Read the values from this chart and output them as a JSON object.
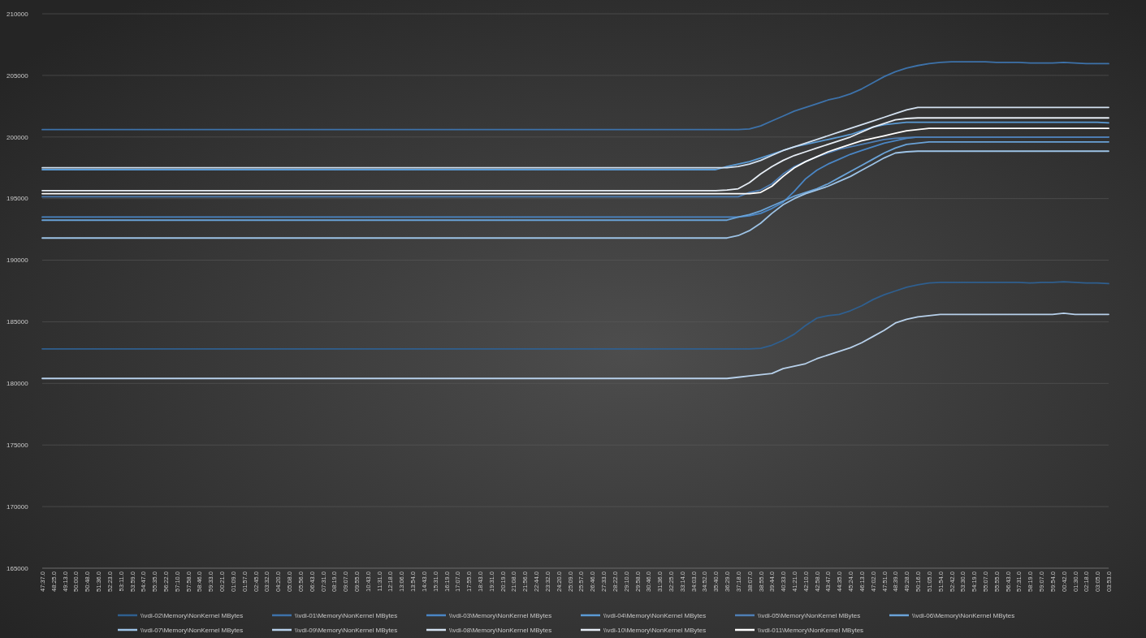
{
  "chart_data": {
    "type": "line",
    "categories": [
      "47:37.0",
      "48:25.0",
      "49:13.0",
      "50:00.0",
      "50:48.0",
      "51:36.0",
      "52:23.0",
      "53:11.0",
      "53:59.0",
      "54:47.0",
      "55:35.0",
      "56:22.0",
      "57:10.0",
      "57:58.0",
      "58:46.0",
      "59:33.0",
      "00:21.0",
      "01:09.0",
      "01:57.0",
      "02:45.0",
      "03:32.0",
      "04:20.0",
      "05:08.0",
      "05:56.0",
      "06:43.0",
      "07:31.0",
      "08:19.0",
      "09:07.0",
      "09:55.0",
      "10:43.0",
      "11:31.0",
      "12:18.0",
      "13:06.0",
      "13:54.0",
      "14:43.0",
      "15:31.0",
      "16:19.0",
      "17:07.0",
      "17:55.0",
      "18:43.0",
      "19:31.0",
      "20:19.0",
      "21:08.0",
      "21:56.0",
      "22:44.0",
      "23:32.0",
      "24:20.0",
      "25:09.0",
      "25:57.0",
      "26:46.0",
      "27:33.0",
      "28:22.0",
      "29:10.0",
      "29:58.0",
      "30:46.0",
      "31:36.0",
      "32:25.0",
      "33:14.0",
      "34:03.0",
      "34:52.0",
      "35:40.0",
      "36:29.0",
      "37:18.0",
      "38:07.0",
      "38:55.0",
      "39:44.0",
      "40:33.0",
      "41:21.0",
      "42:10.0",
      "42:58.0",
      "43:47.0",
      "44:35.0",
      "45:24.0",
      "46:13.0",
      "47:02.0",
      "47:51.0",
      "48:39.0",
      "49:28.0",
      "50:16.0",
      "51:05.0",
      "51:54.0",
      "52:42.0",
      "53:30.0",
      "54:19.0",
      "55:07.0",
      "55:55.0",
      "56:43.0",
      "57:31.0",
      "58:19.0",
      "59:07.0",
      "59:54.0",
      "00:42.0",
      "01:30.0",
      "02:18.0",
      "03:05.0",
      "03:53.0"
    ],
    "series": [
      {
        "name": "\\\\vdi-02\\Memory\\NonKernel MBytes",
        "color": "#2f5f8f",
        "values": [
          182800,
          182800,
          182800,
          182800,
          182800,
          182800,
          182800,
          182800,
          182800,
          182800,
          182800,
          182800,
          182800,
          182800,
          182800,
          182800,
          182800,
          182800,
          182800,
          182800,
          182800,
          182800,
          182800,
          182800,
          182800,
          182800,
          182800,
          182800,
          182800,
          182800,
          182800,
          182800,
          182800,
          182800,
          182800,
          182800,
          182800,
          182800,
          182800,
          182800,
          182800,
          182800,
          182800,
          182800,
          182800,
          182800,
          182800,
          182800,
          182800,
          182800,
          182800,
          182800,
          182800,
          182800,
          182800,
          182800,
          182800,
          182800,
          182800,
          182800,
          182800,
          182800,
          182800,
          182800,
          182850,
          183100,
          183500,
          184000,
          184700,
          185300,
          185500,
          185600,
          185900,
          186300,
          186800,
          187200,
          187500,
          187800,
          188000,
          188150,
          188200,
          188200,
          188200,
          188200,
          188200,
          188200,
          188200,
          188200,
          188150,
          188200,
          188200,
          188250,
          188200,
          188150,
          188150,
          188100
        ]
      },
      {
        "name": "\\\\vdi-01\\Memory\\NonKernel MBytes",
        "color": "#3d72aa",
        "values": [
          200600,
          200600,
          200600,
          200600,
          200600,
          200600,
          200600,
          200600,
          200600,
          200600,
          200600,
          200600,
          200600,
          200600,
          200600,
          200600,
          200600,
          200600,
          200600,
          200600,
          200600,
          200600,
          200600,
          200600,
          200600,
          200600,
          200600,
          200600,
          200600,
          200600,
          200600,
          200600,
          200600,
          200600,
          200600,
          200600,
          200600,
          200600,
          200600,
          200600,
          200600,
          200600,
          200600,
          200600,
          200600,
          200600,
          200600,
          200600,
          200600,
          200600,
          200600,
          200600,
          200600,
          200600,
          200600,
          200600,
          200600,
          200600,
          200600,
          200600,
          200600,
          200600,
          200600,
          200650,
          200900,
          201300,
          201700,
          202100,
          202400,
          202700,
          203000,
          203200,
          203500,
          203900,
          204400,
          204900,
          205300,
          205600,
          205800,
          205950,
          206050,
          206100,
          206100,
          206100,
          206100,
          206050,
          206050,
          206050,
          206000,
          206000,
          206000,
          206050,
          206000,
          205950,
          205950,
          205950
        ]
      },
      {
        "name": "\\\\vdi-03\\Memory\\NonKernel MBytes",
        "color": "#4a86c5",
        "values": [
          193500,
          193500,
          193500,
          193500,
          193500,
          193500,
          193500,
          193500,
          193500,
          193500,
          193500,
          193500,
          193500,
          193500,
          193500,
          193500,
          193500,
          193500,
          193500,
          193500,
          193500,
          193500,
          193500,
          193500,
          193500,
          193500,
          193500,
          193500,
          193500,
          193500,
          193500,
          193500,
          193500,
          193500,
          193500,
          193500,
          193500,
          193500,
          193500,
          193500,
          193500,
          193500,
          193500,
          193500,
          193500,
          193500,
          193500,
          193500,
          193500,
          193500,
          193500,
          193500,
          193500,
          193500,
          193500,
          193500,
          193500,
          193500,
          193500,
          193500,
          193500,
          193500,
          193500,
          193600,
          193800,
          194200,
          194700,
          195600,
          196600,
          197300,
          197800,
          198200,
          198600,
          198900,
          199200,
          199500,
          199700,
          199900,
          200000,
          200000,
          200000,
          200000,
          200000,
          200000,
          200000,
          200000,
          200000,
          200000,
          200000,
          200000,
          200000,
          200000,
          200000,
          200000,
          200000,
          200000
        ]
      },
      {
        "name": "\\\\vdi-04\\Memory\\NonKernel MBytes",
        "color": "#5b9bd5",
        "values": [
          197350,
          197350,
          197350,
          197350,
          197350,
          197350,
          197350,
          197350,
          197350,
          197350,
          197350,
          197350,
          197350,
          197350,
          197350,
          197350,
          197350,
          197350,
          197350,
          197350,
          197350,
          197350,
          197350,
          197350,
          197350,
          197350,
          197350,
          197350,
          197350,
          197350,
          197350,
          197350,
          197350,
          197350,
          197350,
          197350,
          197350,
          197350,
          197350,
          197350,
          197350,
          197350,
          197350,
          197350,
          197350,
          197350,
          197350,
          197350,
          197350,
          197350,
          197350,
          197350,
          197350,
          197350,
          197350,
          197350,
          197350,
          197350,
          197350,
          197350,
          197350,
          197600,
          197800,
          198000,
          198300,
          198600,
          198900,
          199200,
          199400,
          199600,
          199800,
          200000,
          200200,
          200500,
          200800,
          201000,
          201100,
          201200,
          201200,
          201200,
          201200,
          201200,
          201200,
          201200,
          201200,
          201200,
          201200,
          201200,
          201200,
          201200,
          201200,
          201200,
          201200,
          201200,
          201200,
          201150
        ]
      },
      {
        "name": "\\\\vdi-05\\Memory\\NonKernel MBytes",
        "color": "#4f7fb5",
        "values": [
          195150,
          195150,
          195150,
          195150,
          195150,
          195150,
          195150,
          195150,
          195150,
          195150,
          195150,
          195150,
          195150,
          195150,
          195150,
          195150,
          195150,
          195150,
          195150,
          195150,
          195150,
          195150,
          195150,
          195150,
          195150,
          195150,
          195150,
          195150,
          195150,
          195150,
          195150,
          195150,
          195150,
          195150,
          195150,
          195150,
          195150,
          195150,
          195150,
          195150,
          195150,
          195150,
          195150,
          195150,
          195150,
          195150,
          195150,
          195150,
          195150,
          195150,
          195150,
          195150,
          195150,
          195150,
          195150,
          195150,
          195150,
          195150,
          195150,
          195150,
          195150,
          195150,
          195150,
          195500,
          195700,
          196200,
          197000,
          197600,
          198000,
          198400,
          198700,
          199000,
          199200,
          199400,
          199600,
          199800,
          199900,
          199950,
          200000,
          200000,
          200000,
          200000,
          200000,
          200000,
          200000,
          200000,
          200000,
          200000,
          200000,
          200000,
          200000,
          200000,
          200000,
          200000,
          200000,
          200000
        ]
      },
      {
        "name": "\\\\vdi-06\\Memory\\NonKernel MBytes",
        "color": "#6aa3d8",
        "values": [
          193250,
          193250,
          193250,
          193250,
          193250,
          193250,
          193250,
          193250,
          193250,
          193250,
          193250,
          193250,
          193250,
          193250,
          193250,
          193250,
          193250,
          193250,
          193250,
          193250,
          193250,
          193250,
          193250,
          193250,
          193250,
          193250,
          193250,
          193250,
          193250,
          193250,
          193250,
          193250,
          193250,
          193250,
          193250,
          193250,
          193250,
          193250,
          193250,
          193250,
          193250,
          193250,
          193250,
          193250,
          193250,
          193250,
          193250,
          193250,
          193250,
          193250,
          193250,
          193250,
          193250,
          193250,
          193250,
          193250,
          193250,
          193250,
          193250,
          193250,
          193250,
          193250,
          193500,
          193700,
          194000,
          194400,
          194800,
          195200,
          195500,
          195800,
          196200,
          196700,
          197200,
          197700,
          198200,
          198700,
          199100,
          199400,
          199500,
          199600,
          199600,
          199600,
          199600,
          199600,
          199600,
          199600,
          199600,
          199600,
          199600,
          199600,
          199600,
          199600,
          199600,
          199600,
          199600,
          199600
        ]
      },
      {
        "name": "\\\\vdi-07\\Memory\\NonKernel MBytes",
        "color": "#9dc3e6",
        "values": [
          191800,
          191800,
          191800,
          191800,
          191800,
          191800,
          191800,
          191800,
          191800,
          191800,
          191800,
          191800,
          191800,
          191800,
          191800,
          191800,
          191800,
          191800,
          191800,
          191800,
          191800,
          191800,
          191800,
          191800,
          191800,
          191800,
          191800,
          191800,
          191800,
          191800,
          191800,
          191800,
          191800,
          191800,
          191800,
          191800,
          191800,
          191800,
          191800,
          191800,
          191800,
          191800,
          191800,
          191800,
          191800,
          191800,
          191800,
          191800,
          191800,
          191800,
          191800,
          191800,
          191800,
          191800,
          191800,
          191800,
          191800,
          191800,
          191800,
          191800,
          191800,
          191800,
          192000,
          192400,
          193000,
          193800,
          194500,
          195000,
          195400,
          195700,
          196000,
          196400,
          196800,
          197300,
          197800,
          198300,
          198700,
          198800,
          198850,
          198850,
          198850,
          198850,
          198850,
          198850,
          198850,
          198850,
          198850,
          198850,
          198850,
          198850,
          198850,
          198850,
          198850,
          198850,
          198850,
          198850
        ]
      },
      {
        "name": "\\\\vdi-09\\Memory\\NonKernel MBytes",
        "color": "#b7d0ea",
        "values": [
          180400,
          180400,
          180400,
          180400,
          180400,
          180400,
          180400,
          180400,
          180400,
          180400,
          180400,
          180400,
          180400,
          180400,
          180400,
          180400,
          180400,
          180400,
          180400,
          180400,
          180400,
          180400,
          180400,
          180400,
          180400,
          180400,
          180400,
          180400,
          180400,
          180400,
          180400,
          180400,
          180400,
          180400,
          180400,
          180400,
          180400,
          180400,
          180400,
          180400,
          180400,
          180400,
          180400,
          180400,
          180400,
          180400,
          180400,
          180400,
          180400,
          180400,
          180400,
          180400,
          180400,
          180400,
          180400,
          180400,
          180400,
          180400,
          180400,
          180400,
          180400,
          180400,
          180500,
          180600,
          180700,
          180800,
          181200,
          181400,
          181600,
          182000,
          182300,
          182600,
          182900,
          183300,
          183800,
          184300,
          184900,
          185200,
          185400,
          185500,
          185600,
          185600,
          185600,
          185600,
          185600,
          185600,
          185600,
          185600,
          185600,
          185600,
          185600,
          185700,
          185600,
          185600,
          185600,
          185600
        ]
      },
      {
        "name": "\\\\vdi-08\\Memory\\NonKernel MBytes",
        "color": "#d3e1f0",
        "values": [
          197500,
          197500,
          197500,
          197500,
          197500,
          197500,
          197500,
          197500,
          197500,
          197500,
          197500,
          197500,
          197500,
          197500,
          197500,
          197500,
          197500,
          197500,
          197500,
          197500,
          197500,
          197500,
          197500,
          197500,
          197500,
          197500,
          197500,
          197500,
          197500,
          197500,
          197500,
          197500,
          197500,
          197500,
          197500,
          197500,
          197500,
          197500,
          197500,
          197500,
          197500,
          197500,
          197500,
          197500,
          197500,
          197500,
          197500,
          197500,
          197500,
          197500,
          197500,
          197500,
          197500,
          197500,
          197500,
          197500,
          197500,
          197500,
          197500,
          197500,
          197500,
          197500,
          197600,
          197800,
          198100,
          198500,
          198900,
          199200,
          199500,
          199800,
          200100,
          200400,
          200700,
          201000,
          201300,
          201600,
          201900,
          202200,
          202400,
          202400,
          202400,
          202400,
          202400,
          202400,
          202400,
          202400,
          202400,
          202400,
          202400,
          202400,
          202400,
          202400,
          202400,
          202400,
          202400,
          202400
        ]
      },
      {
        "name": "\\\\vdi-10\\Memory\\NonKernel MBytes",
        "color": "#e6edf5",
        "values": [
          195650,
          195650,
          195650,
          195650,
          195650,
          195650,
          195650,
          195650,
          195650,
          195650,
          195650,
          195650,
          195650,
          195650,
          195650,
          195650,
          195650,
          195650,
          195650,
          195650,
          195650,
          195650,
          195650,
          195650,
          195650,
          195650,
          195650,
          195650,
          195650,
          195650,
          195650,
          195650,
          195650,
          195650,
          195650,
          195650,
          195650,
          195650,
          195650,
          195650,
          195650,
          195650,
          195650,
          195650,
          195650,
          195650,
          195650,
          195650,
          195650,
          195650,
          195650,
          195650,
          195650,
          195650,
          195650,
          195650,
          195650,
          195650,
          195650,
          195650,
          195650,
          195700,
          195800,
          196300,
          197000,
          197600,
          198100,
          198500,
          198800,
          199100,
          199400,
          199700,
          200000,
          200400,
          200800,
          201100,
          201400,
          201500,
          201550,
          201550,
          201550,
          201550,
          201550,
          201550,
          201550,
          201550,
          201550,
          201550,
          201550,
          201550,
          201550,
          201550,
          201550,
          201550,
          201550,
          201550
        ]
      },
      {
        "name": "\\\\vdi-011\\Memory\\NonKernel MBytes",
        "color": "#ffffff",
        "values": [
          195400,
          195400,
          195400,
          195400,
          195400,
          195400,
          195400,
          195400,
          195400,
          195400,
          195400,
          195400,
          195400,
          195400,
          195400,
          195400,
          195400,
          195400,
          195400,
          195400,
          195400,
          195400,
          195400,
          195400,
          195400,
          195400,
          195400,
          195400,
          195400,
          195400,
          195400,
          195400,
          195400,
          195400,
          195400,
          195400,
          195400,
          195400,
          195400,
          195400,
          195400,
          195400,
          195400,
          195400,
          195400,
          195400,
          195400,
          195400,
          195400,
          195400,
          195400,
          195400,
          195400,
          195400,
          195400,
          195400,
          195400,
          195400,
          195400,
          195400,
          195400,
          195400,
          195400,
          195400,
          195500,
          196000,
          196800,
          197500,
          198000,
          198400,
          198800,
          199100,
          199400,
          199700,
          199900,
          200100,
          200300,
          200500,
          200600,
          200700,
          200700,
          200700,
          200700,
          200700,
          200700,
          200700,
          200700,
          200700,
          200700,
          200700,
          200700,
          200700,
          200700,
          200700,
          200700,
          200700
        ]
      }
    ],
    "ylim": [
      165000,
      210000
    ],
    "yticks": [
      165000,
      170000,
      175000,
      180000,
      185000,
      190000,
      195000,
      200000,
      205000,
      210000
    ],
    "grid": "y",
    "legend": "bottom",
    "line_style": "solid",
    "marker": "none"
  }
}
